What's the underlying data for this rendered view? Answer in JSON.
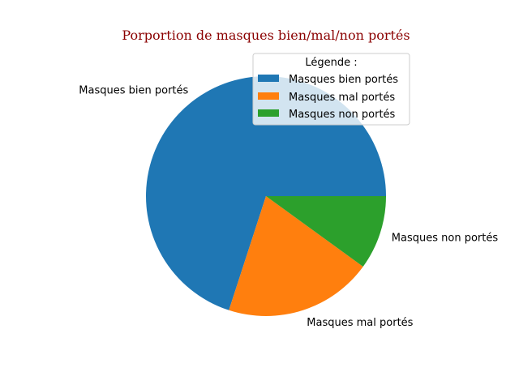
{
  "chart_data": {
    "type": "pie",
    "title": "Porportion de masques bien/mal/non portés",
    "categories": [
      "Masques bien portés",
      "Masques mal portés",
      "Masques non portés"
    ],
    "values": [
      70,
      20,
      10
    ],
    "colors": [
      "#1f77b4",
      "#ff7f0e",
      "#2ca02c"
    ],
    "start_angle_deg": 0,
    "direction": "counterclockwise",
    "legend": {
      "title": "Légende :",
      "placement": "upper-right",
      "entries": [
        "Masques bien portés",
        "Masques mal portés",
        "Masques non portés"
      ]
    }
  },
  "title_color": "#8b0000"
}
